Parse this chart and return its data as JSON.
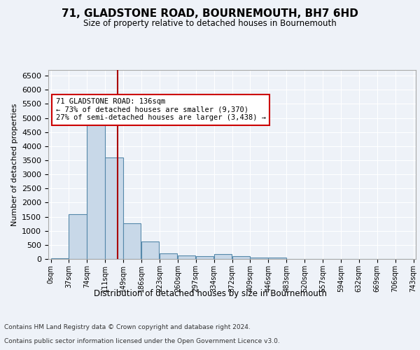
{
  "title": "71, GLADSTONE ROAD, BOURNEMOUTH, BH7 6HD",
  "subtitle": "Size of property relative to detached houses in Bournemouth",
  "xlabel": "Distribution of detached houses by size in Bournemouth",
  "ylabel": "Number of detached properties",
  "bar_color": "#c8d8e8",
  "bar_edge_color": "#5588aa",
  "bin_labels": [
    "0sqm",
    "37sqm",
    "74sqm",
    "111sqm",
    "149sqm",
    "186sqm",
    "223sqm",
    "260sqm",
    "297sqm",
    "334sqm",
    "372sqm",
    "409sqm",
    "446sqm",
    "483sqm",
    "520sqm",
    "557sqm",
    "594sqm",
    "632sqm",
    "669sqm",
    "706sqm",
    "743sqm"
  ],
  "bar_heights": [
    30,
    1590,
    5050,
    3600,
    1260,
    620,
    200,
    130,
    100,
    170,
    110,
    50,
    50,
    10,
    10,
    0,
    0,
    0,
    0,
    0
  ],
  "ylim": [
    0,
    6700
  ],
  "yticks": [
    0,
    500,
    1000,
    1500,
    2000,
    2500,
    3000,
    3500,
    4000,
    4500,
    5000,
    5500,
    6000,
    6500
  ],
  "property_line_x": 136,
  "bin_width": 37,
  "annotation_text": "71 GLADSTONE ROAD: 136sqm\n← 73% of detached houses are smaller (9,370)\n27% of semi-detached houses are larger (3,438) →",
  "annotation_box_color": "#ffffff",
  "annotation_border_color": "#cc0000",
  "vline_color": "#aa0000",
  "background_color": "#eef2f8",
  "plot_bg_color": "#eef2f8",
  "footer_line1": "Contains HM Land Registry data © Crown copyright and database right 2024.",
  "footer_line2": "Contains public sector information licensed under the Open Government Licence v3.0.",
  "grid_color": "#ffffff"
}
